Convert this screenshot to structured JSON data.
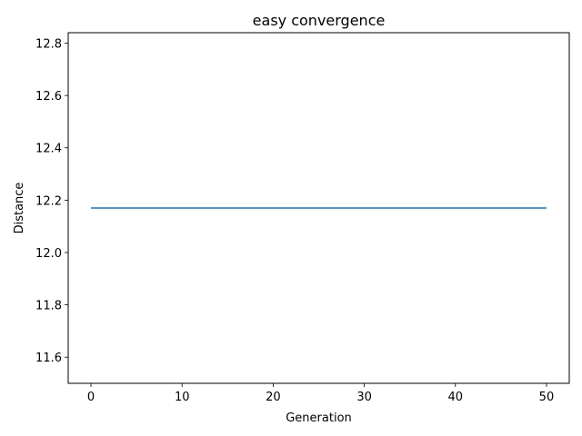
{
  "chart_data": {
    "type": "line",
    "title": "easy convergence",
    "xlabel": "Generation",
    "ylabel": "Distance",
    "xlim": [
      -2.5,
      52.5
    ],
    "ylim": [
      11.5,
      12.84
    ],
    "xticks": [
      0,
      10,
      20,
      30,
      40,
      50
    ],
    "xtick_labels": [
      "0",
      "10",
      "20",
      "30",
      "40",
      "50"
    ],
    "yticks": [
      11.6,
      11.8,
      12.0,
      12.2,
      12.4,
      12.6,
      12.8
    ],
    "ytick_labels": [
      "11.6",
      "11.8",
      "12.0",
      "12.2",
      "12.4",
      "12.6",
      "12.8"
    ],
    "grid": false,
    "legend": "none",
    "series": [
      {
        "color": "#1f77b4",
        "x": [
          0,
          50
        ],
        "y": [
          12.17,
          12.17
        ]
      }
    ]
  }
}
